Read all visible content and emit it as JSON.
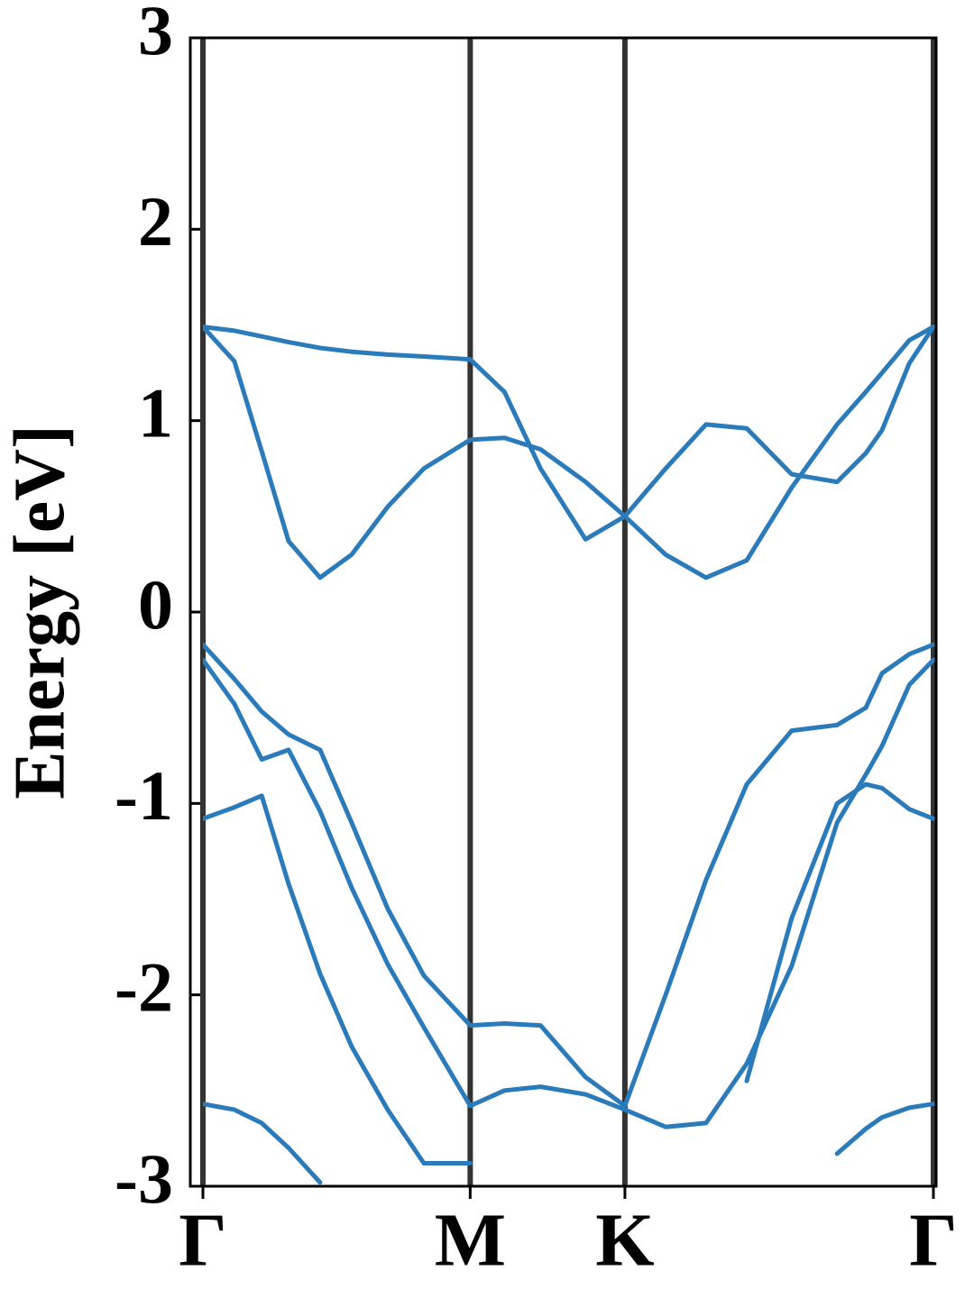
{
  "chart_data": {
    "type": "line",
    "ylabel": "Energy [eV]",
    "x": [
      0,
      0.068,
      0.127,
      0.185,
      0.253,
      0.321,
      0.399,
      0.477,
      0.577,
      0.651,
      0.729,
      0.826,
      0.911,
      0.999,
      1.086,
      1.174,
      1.271,
      1.369,
      1.431,
      1.466,
      1.525,
      1.577
    ],
    "series": [
      {
        "color": "#2b7bba",
        "values": [
          1.49,
          1.47,
          1.44,
          1.41,
          1.38,
          1.36,
          1.345,
          1.335,
          1.32,
          1.15,
          0.75,
          0.38,
          0.5,
          0.75,
          0.98,
          0.96,
          0.72,
          0.68,
          0.83,
          0.95,
          1.3,
          1.49
        ]
      },
      {
        "color": "#2b7bba",
        "values": [
          1.49,
          1.31,
          0.84,
          0.37,
          0.18,
          0.3,
          0.55,
          0.75,
          0.9,
          0.91,
          0.85,
          0.68,
          0.5,
          0.3,
          0.18,
          0.27,
          0.65,
          0.98,
          1.15,
          1.25,
          1.42,
          1.49
        ]
      },
      {
        "color": "#2b7bba",
        "values": [
          -0.17,
          -0.35,
          -0.52,
          -0.64,
          -0.72,
          -1.1,
          -1.55,
          -1.9,
          -2.16,
          -2.15,
          -2.16,
          -2.43,
          -2.58,
          -2.0,
          -1.4,
          -0.9,
          -0.62,
          -0.59,
          -0.5,
          -0.32,
          -0.22,
          -0.17
        ]
      },
      {
        "color": "#2b7bba",
        "values": [
          -0.25,
          -0.48,
          -0.77,
          -0.72,
          -1.04,
          -1.44,
          -1.84,
          -2.17,
          -2.58,
          -2.5,
          -2.48,
          -2.52,
          -2.6,
          -2.69,
          -2.67,
          -2.36,
          -1.85,
          -1.1,
          -0.85,
          -0.7,
          -0.38,
          -0.25
        ]
      },
      {
        "color": "#2b7bba",
        "values": [
          -1.08,
          -1.02,
          -0.96,
          -1.42,
          -1.89,
          -2.27,
          -2.6,
          -2.88,
          -2.88,
          null,
          null,
          null,
          null,
          null,
          null,
          -2.45,
          -1.6,
          -1.0,
          -0.9,
          -0.92,
          -1.03,
          -1.08
        ]
      },
      {
        "color": "#2b7bba",
        "values": [
          -2.57,
          -2.6,
          -2.67,
          -2.8,
          -2.98,
          null,
          null,
          null,
          null,
          null,
          null,
          null,
          null,
          null,
          null,
          null,
          null,
          -2.83,
          -2.7,
          -2.64,
          -2.59,
          -2.57
        ]
      }
    ],
    "xlim": [
      0,
      1.577
    ],
    "xticks": [
      {
        "value": 0,
        "label": "Γ"
      },
      {
        "value": 0.577,
        "label": "M"
      },
      {
        "value": 0.911,
        "label": "K"
      },
      {
        "value": 1.577,
        "label": "Γ"
      }
    ],
    "xgrid": true,
    "ylim": [
      -3,
      3
    ],
    "yticks": [
      -3,
      -2,
      -1,
      0,
      1,
      2,
      3
    ]
  }
}
